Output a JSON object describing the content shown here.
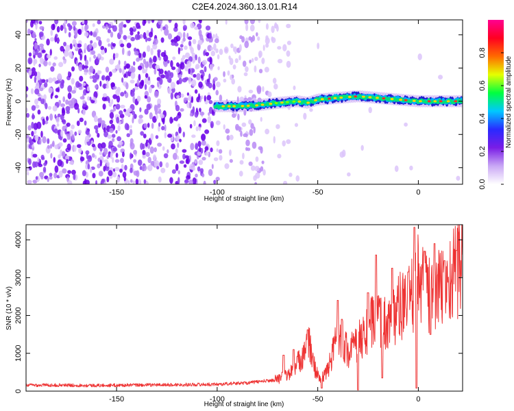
{
  "title": "C2E4.2024.360.13.01.R14",
  "chart_data": [
    {
      "type": "heatmap",
      "xlabel": "Height of straight line (km)",
      "ylabel": "Frequency (Hz)",
      "xlim": [
        -195,
        22
      ],
      "ylim": [
        -50,
        49
      ],
      "xticks": [
        -150,
        -100,
        -50,
        0
      ],
      "yticks": [
        -40,
        -20,
        0,
        20,
        40
      ],
      "signal_start_x": -101,
      "signal_ridge": [
        {
          "x": -101,
          "y": -3
        },
        {
          "x": -90,
          "y": -3
        },
        {
          "x": -80,
          "y": -2.5
        },
        {
          "x": -70,
          "y": -1
        },
        {
          "x": -60,
          "y": 0
        },
        {
          "x": -55,
          "y": -1
        },
        {
          "x": -50,
          "y": 1
        },
        {
          "x": -40,
          "y": 2
        },
        {
          "x": -30,
          "y": 3
        },
        {
          "x": -20,
          "y": 2
        },
        {
          "x": -10,
          "y": 1
        },
        {
          "x": 0,
          "y": 0
        },
        {
          "x": 10,
          "y": 0
        },
        {
          "x": 20,
          "y": 0
        }
      ],
      "noise_colors": [
        "#6a00e8",
        "#8a3cf0",
        "#b88af5",
        "#dcc4fa"
      ],
      "colorbar": {
        "label": "Normalized spectral amplitude",
        "range": [
          0,
          1
        ],
        "ticks": [
          0,
          0.2,
          0.4,
          0.6,
          0.8
        ],
        "tick_labels": [
          "0.0",
          "0.2",
          "0.4",
          "0.6",
          "0.8"
        ],
        "colors": [
          "#ffffff",
          "#c9a8f5",
          "#7a1de6",
          "#2a2aff",
          "#00c8ff",
          "#00ff40",
          "#e6ff00",
          "#ff6a00",
          "#ff0020",
          "#ff0090"
        ]
      }
    },
    {
      "type": "line",
      "xlabel": "Height of straight line (km)",
      "ylabel": "SNR (10 * v/v)",
      "xlim": [
        -195,
        22
      ],
      "ylim": [
        0,
        4400
      ],
      "xticks": [
        -150,
        -100,
        -50,
        0
      ],
      "yticks": [
        0,
        1000,
        2000,
        3000,
        4000
      ],
      "color": "#ee3333",
      "series": [
        {
          "x": [
            -195,
            -180,
            -160,
            -140,
            -120,
            -100,
            -85,
            -72,
            -66,
            -62,
            -58,
            -55,
            -52,
            -49,
            -45,
            -42,
            -40,
            -37,
            -35,
            -30,
            -25,
            -22,
            -20,
            -15,
            -10,
            -5,
            -2,
            0,
            5,
            10,
            15,
            20,
            22
          ],
          "y": [
            160,
            160,
            150,
            160,
            170,
            180,
            220,
            290,
            400,
            560,
            900,
            1400,
            700,
            300,
            550,
            1100,
            1700,
            1300,
            1000,
            1300,
            1600,
            1900,
            1800,
            1800,
            2200,
            2300,
            2600,
            3000,
            2600,
            2700,
            2900,
            3300,
            3400
          ]
        }
      ],
      "peaks": [
        {
          "x": -67,
          "y": 950
        },
        {
          "x": -62,
          "y": 1100
        },
        {
          "x": -55,
          "y": 1620
        },
        {
          "x": -40,
          "y": 2400
        },
        {
          "x": -38,
          "y": 1900
        },
        {
          "x": -30,
          "y": 2600
        },
        {
          "x": -25,
          "y": 2600
        },
        {
          "x": -21,
          "y": 3600
        },
        {
          "x": -13,
          "y": 3250
        },
        {
          "x": -5,
          "y": 3150
        },
        {
          "x": -2,
          "y": 4330
        },
        {
          "x": 3,
          "y": 3700
        },
        {
          "x": 8,
          "y": 3900
        },
        {
          "x": 13,
          "y": 3450
        },
        {
          "x": 19,
          "y": 3720
        }
      ],
      "dips": [
        {
          "x": -48,
          "y": 80
        },
        {
          "x": -30,
          "y": 30
        },
        {
          "x": -18,
          "y": 350
        },
        {
          "x": -1,
          "y": 80
        },
        {
          "x": 6,
          "y": 1500
        }
      ]
    }
  ]
}
